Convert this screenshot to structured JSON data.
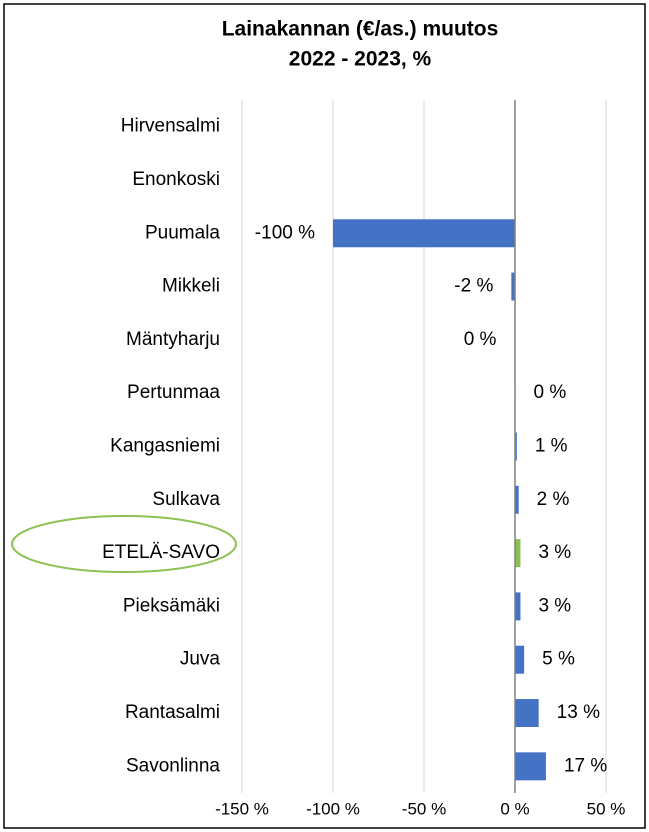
{
  "chart_data": {
    "type": "hbar",
    "title": [
      "Lainakannan (€/as.) muutos",
      "2022 - 2023, %"
    ],
    "categories": [
      "Hirvensalmi",
      "Enonkoski",
      "Puumala",
      "Mikkeli",
      "Mäntyharju",
      "Pertunmaa",
      "Kangasniemi",
      "Sulkava",
      "ETELÄ-SAVO",
      "Pieksämäki",
      "Juva",
      "Rantasalmi",
      "Savonlinna"
    ],
    "values": [
      null,
      null,
      -100,
      -2,
      -0.3,
      0.3,
      1,
      2,
      3,
      3,
      5,
      13,
      17
    ],
    "value_labels": [
      null,
      null,
      "-100 %",
      "-2 %",
      "0 %",
      "0 %",
      "1 %",
      "2 %",
      "3 %",
      "3 %",
      "5 %",
      "13 %",
      "17 %"
    ],
    "colors": [
      "#4472c4",
      "#4472c4",
      "#4472c4",
      "#4472c4",
      "#4472c4",
      "#4472c4",
      "#4472c4",
      "#4472c4",
      "#8cc152",
      "#4472c4",
      "#4472c4",
      "#4472c4",
      "#4472c4"
    ],
    "xlim": [
      -150,
      50
    ],
    "xticks": [
      {
        "value": -150,
        "label": "-150 %"
      },
      {
        "value": -100,
        "label": "-100 %"
      },
      {
        "value": -50,
        "label": "-50 %"
      },
      {
        "value": 0,
        "label": "0 %"
      },
      {
        "value": 50,
        "label": "50 %"
      }
    ],
    "grid": true
  }
}
